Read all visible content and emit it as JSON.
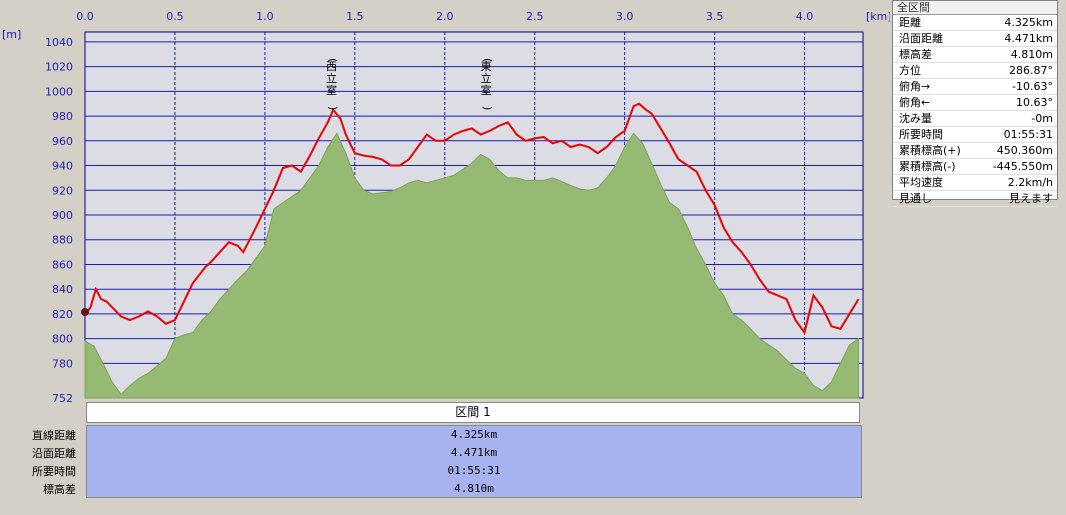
{
  "chart_data": {
    "type": "area",
    "x_unit": "[km]",
    "y_unit": "[m]",
    "xlim": [
      0.0,
      4.325
    ],
    "ylim": [
      752,
      1048
    ],
    "x_ticks": [
      "0.0",
      "0.5",
      "1.0",
      "1.5",
      "2.0",
      "2.5",
      "3.0",
      "3.5",
      "4.0"
    ],
    "y_ticks": [
      "1040",
      "1020",
      "1000",
      "980",
      "960",
      "940",
      "920",
      "900",
      "880",
      "860",
      "840",
      "820",
      "800",
      "780",
      "752"
    ],
    "grid": true,
    "series": [
      {
        "type": "line",
        "color": "#ee0000",
        "x": [
          0.0,
          0.03,
          0.06,
          0.09,
          0.12,
          0.2,
          0.25,
          0.3,
          0.35,
          0.4,
          0.45,
          0.5,
          0.55,
          0.6,
          0.67,
          0.7,
          0.75,
          0.8,
          0.85,
          0.88,
          0.95,
          1.0,
          1.05,
          1.1,
          1.15,
          1.2,
          1.25,
          1.3,
          1.35,
          1.38,
          1.42,
          1.45,
          1.5,
          1.55,
          1.6,
          1.65,
          1.7,
          1.75,
          1.8,
          1.85,
          1.9,
          1.95,
          2.0,
          2.05,
          2.1,
          2.15,
          2.2,
          2.25,
          2.3,
          2.35,
          2.4,
          2.45,
          2.5,
          2.55,
          2.6,
          2.65,
          2.7,
          2.75,
          2.8,
          2.85,
          2.9,
          2.95,
          3.0,
          3.03,
          3.05,
          3.08,
          3.12,
          3.15,
          3.2,
          3.25,
          3.28,
          3.3,
          3.35,
          3.4,
          3.45,
          3.5,
          3.55,
          3.6,
          3.65,
          3.7,
          3.75,
          3.8,
          3.85,
          3.9,
          3.95,
          4.0,
          4.05,
          4.1,
          4.15,
          4.2,
          4.25,
          4.3
        ],
        "y": [
          820,
          825,
          840,
          832,
          830,
          818,
          815,
          818,
          822,
          818,
          812,
          815,
          830,
          845,
          858,
          862,
          870,
          878,
          875,
          870,
          890,
          905,
          920,
          938,
          940,
          935,
          948,
          962,
          975,
          985,
          978,
          965,
          950,
          948,
          947,
          945,
          940,
          940,
          945,
          955,
          965,
          960,
          960,
          965,
          968,
          970,
          965,
          968,
          972,
          975,
          965,
          960,
          962,
          963,
          958,
          960,
          955,
          957,
          955,
          950,
          955,
          963,
          968,
          980,
          988,
          990,
          985,
          982,
          970,
          958,
          950,
          945,
          940,
          935,
          920,
          908,
          890,
          878,
          870,
          860,
          848,
          838,
          835,
          832,
          815,
          805,
          835,
          825,
          810,
          808,
          820,
          832
        ]
      },
      {
        "type": "area",
        "color": "#96ba74",
        "x": [
          0.0,
          0.05,
          0.1,
          0.15,
          0.2,
          0.25,
          0.3,
          0.35,
          0.4,
          0.45,
          0.5,
          0.55,
          0.6,
          0.65,
          0.7,
          0.75,
          0.8,
          0.85,
          0.9,
          0.95,
          1.0,
          1.05,
          1.1,
          1.15,
          1.2,
          1.25,
          1.3,
          1.35,
          1.4,
          1.45,
          1.5,
          1.55,
          1.6,
          1.65,
          1.7,
          1.75,
          1.8,
          1.85,
          1.9,
          1.95,
          2.0,
          2.05,
          2.1,
          2.15,
          2.2,
          2.25,
          2.3,
          2.35,
          2.4,
          2.45,
          2.5,
          2.55,
          2.6,
          2.65,
          2.7,
          2.75,
          2.8,
          2.85,
          2.9,
          2.95,
          3.0,
          3.05,
          3.1,
          3.15,
          3.2,
          3.25,
          3.3,
          3.35,
          3.4,
          3.45,
          3.5,
          3.55,
          3.6,
          3.65,
          3.7,
          3.75,
          3.8,
          3.85,
          3.9,
          3.95,
          4.0,
          4.05,
          4.1,
          4.15,
          4.2,
          4.25,
          4.3
        ],
        "y": [
          798,
          794,
          780,
          765,
          755,
          762,
          768,
          772,
          778,
          784,
          800,
          803,
          805,
          815,
          822,
          832,
          840,
          848,
          855,
          865,
          875,
          905,
          910,
          915,
          920,
          930,
          940,
          955,
          966,
          950,
          930,
          920,
          917,
          918,
          919,
          922,
          926,
          928,
          926,
          928,
          930,
          932,
          937,
          942,
          949,
          945,
          936,
          930,
          930,
          928,
          928,
          928,
          930,
          927,
          924,
          921,
          920,
          922,
          930,
          940,
          955,
          966,
          958,
          942,
          925,
          910,
          905,
          890,
          873,
          860,
          845,
          835,
          820,
          815,
          808,
          800,
          795,
          790,
          783,
          776,
          772,
          762,
          758,
          765,
          780,
          795,
          800
        ]
      }
    ],
    "annotations": [
      {
        "text": "(西立室)",
        "x": 1.37
      },
      {
        "text": "(東立室)",
        "x": 2.23
      }
    ]
  },
  "stats_panel": {
    "title": "全区間",
    "rows": [
      {
        "label": "距離",
        "value": "4.325km"
      },
      {
        "label": "沿面距離",
        "value": "4.471km"
      },
      {
        "label": "標高差",
        "value": "4.810m"
      },
      {
        "label": "方位",
        "value": "286.87°"
      },
      {
        "label": "俯角→",
        "value": "-10.63°"
      },
      {
        "label": "俯角←",
        "value": "10.63°"
      },
      {
        "label": "沈み量",
        "value": "-0m"
      },
      {
        "label": "所要時間",
        "value": "01:55:31"
      },
      {
        "label": "累積標高(+)",
        "value": "450.360m"
      },
      {
        "label": "累積標高(-)",
        "value": "-445.550m"
      },
      {
        "label": "平均速度",
        "value": "2.2km/h"
      },
      {
        "label": "見通し",
        "value": "見えます"
      }
    ]
  },
  "segment_table": {
    "header": "区間 1",
    "labels": [
      "直線距離",
      "沿面距離",
      "所要時間",
      "標高差"
    ],
    "values": [
      "4.325km",
      "4.471km",
      "01:55:31",
      "4.810m"
    ]
  }
}
